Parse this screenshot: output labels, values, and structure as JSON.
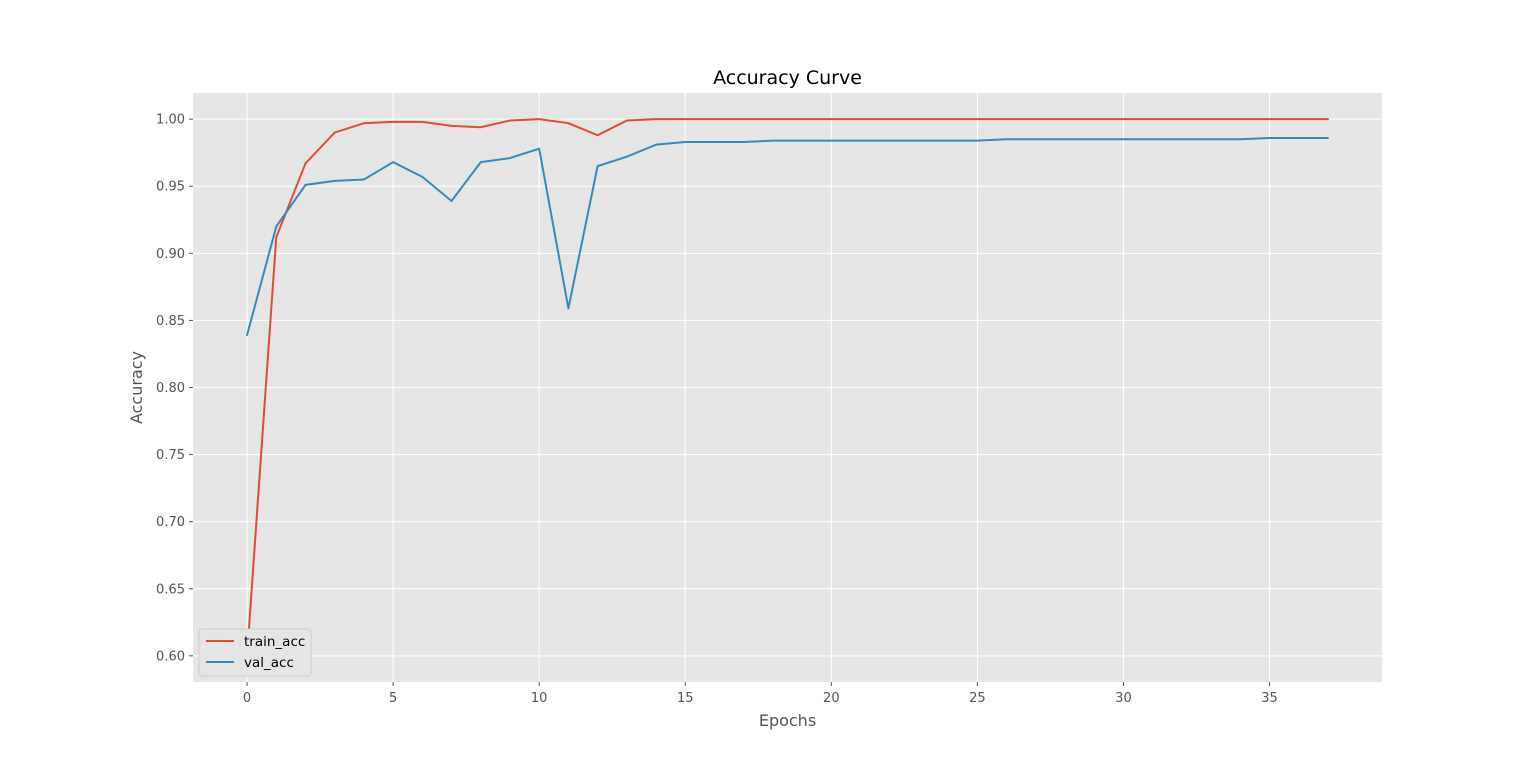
{
  "chart_data": {
    "type": "line",
    "title": "Accuracy Curve",
    "xlabel": "Epochs",
    "ylabel": "Accuracy",
    "xlim": [
      -1.85,
      38.85
    ],
    "ylim": [
      0.5805,
      1.0195
    ],
    "xticks": [
      0,
      5,
      10,
      15,
      20,
      25,
      30,
      35
    ],
    "yticks": [
      0.6,
      0.65,
      0.7,
      0.75,
      0.8,
      0.85,
      0.9,
      0.95,
      1.0
    ],
    "ytick_labels": [
      "0.60",
      "0.65",
      "0.70",
      "0.75",
      "0.80",
      "0.85",
      "0.90",
      "0.95",
      "1.00"
    ],
    "grid": true,
    "style": "ggplot",
    "legend_location": "lower-left",
    "x": [
      0,
      1,
      2,
      3,
      4,
      5,
      6,
      7,
      8,
      9,
      10,
      11,
      12,
      13,
      14,
      15,
      16,
      17,
      18,
      19,
      20,
      21,
      22,
      23,
      24,
      25,
      26,
      27,
      28,
      29,
      30,
      31,
      32,
      33,
      34,
      35,
      36,
      37
    ],
    "series": [
      {
        "name": "train_acc",
        "color": "#E24A33",
        "values": [
          0.6,
          0.912,
          0.967,
          0.99,
          0.997,
          0.998,
          0.998,
          0.995,
          0.994,
          0.999,
          1.0,
          0.997,
          0.988,
          0.999,
          1.0,
          1.0,
          1.0,
          1.0,
          1.0,
          1.0,
          1.0,
          1.0,
          1.0,
          1.0,
          1.0,
          1.0,
          1.0,
          1.0,
          1.0,
          1.0,
          1.0,
          1.0,
          1.0,
          1.0,
          1.0,
          1.0,
          1.0,
          1.0
        ]
      },
      {
        "name": "val_acc",
        "color": "#348ABD",
        "values": [
          0.839,
          0.92,
          0.951,
          0.954,
          0.955,
          0.968,
          0.957,
          0.939,
          0.968,
          0.971,
          0.978,
          0.859,
          0.965,
          0.972,
          0.981,
          0.983,
          0.983,
          0.983,
          0.984,
          0.984,
          0.984,
          0.984,
          0.984,
          0.984,
          0.984,
          0.984,
          0.985,
          0.985,
          0.985,
          0.985,
          0.985,
          0.985,
          0.985,
          0.985,
          0.985,
          0.986,
          0.986,
          0.986
        ]
      }
    ]
  }
}
